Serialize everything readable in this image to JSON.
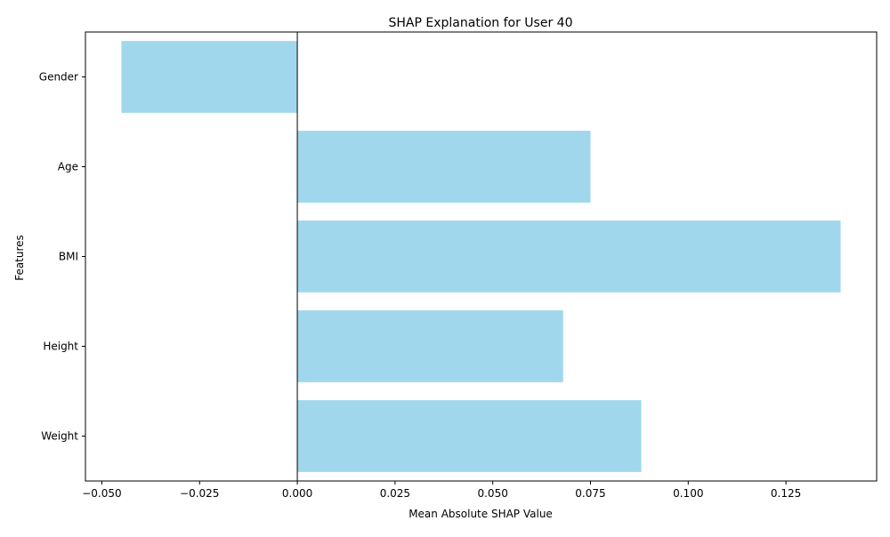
{
  "chart_data": {
    "type": "bar",
    "orientation": "horizontal",
    "title": "SHAP Explanation for User 40",
    "xlabel": "Mean Absolute SHAP Value",
    "ylabel": "Features",
    "categories": [
      "Gender",
      "Age",
      "BMI",
      "Height",
      "Weight"
    ],
    "values": [
      -0.045,
      0.075,
      0.139,
      0.068,
      0.088
    ],
    "xlim": [
      -0.0542,
      0.1482
    ],
    "xticks": [
      -0.05,
      -0.025,
      0.0,
      0.025,
      0.05,
      0.075,
      0.1,
      0.125
    ],
    "xtick_labels": [
      "−0.050",
      "−0.025",
      "0.000",
      "0.025",
      "0.050",
      "0.075",
      "0.100",
      "0.125"
    ],
    "zero_line": true,
    "grid": false,
    "bar_color": "#a0d7ed",
    "axis_color": "#000000"
  }
}
